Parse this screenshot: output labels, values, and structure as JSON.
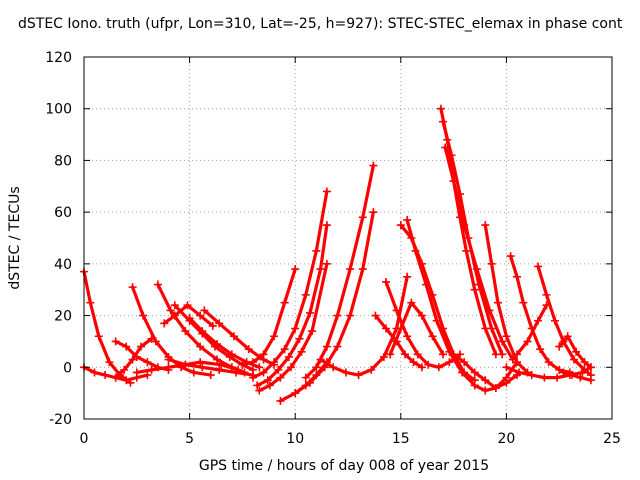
{
  "chart_data": {
    "type": "scatter",
    "title": "dSTEC Iono. truth (ufpr, Lon=310, Lat=-25, h=927): STEC-STEC_elemax in phase cont",
    "xlabel": "GPS time / hours of day 008 of year 2015",
    "ylabel": "dSTEC  / TECUs",
    "xlim": [
      0,
      25
    ],
    "ylim": [
      -20,
      120
    ],
    "xticks": [
      "0",
      "5",
      "10",
      "15",
      "20",
      "25"
    ],
    "yticks": [
      "-20",
      "0",
      "20",
      "40",
      "60",
      "80",
      "100",
      "120"
    ],
    "grid": true,
    "marker": "+",
    "color": "#ff0000",
    "series": [
      {
        "x": [
          0.0,
          0.3,
          0.7,
          1.2,
          1.7,
          2.2
        ],
        "y": [
          37,
          25,
          12,
          2,
          -3,
          -6
        ]
      },
      {
        "x": [
          0.0,
          0.5,
          1.0,
          1.5,
          2.0,
          2.5,
          3.0
        ],
        "y": [
          0,
          -2,
          -3,
          -4,
          -5,
          -4,
          -3
        ]
      },
      {
        "x": [
          1.5,
          2.0,
          2.5,
          3.0,
          3.5,
          4.0
        ],
        "y": [
          10,
          8,
          4,
          2,
          0,
          -1
        ]
      },
      {
        "x": [
          1.5,
          1.9,
          2.3,
          2.7,
          3.2
        ],
        "y": [
          -4,
          -1,
          3,
          8,
          11
        ]
      },
      {
        "x": [
          2.3,
          2.8,
          3.4,
          4.0,
          4.6,
          5.2,
          6.0
        ],
        "y": [
          31,
          20,
          10,
          4,
          0,
          -2,
          -3
        ]
      },
      {
        "x": [
          2.5,
          3.2,
          4.0,
          4.8,
          5.5,
          6.5,
          7.3
        ],
        "y": [
          -2,
          -1,
          0,
          1,
          2,
          1,
          -1
        ]
      },
      {
        "x": [
          3.5,
          4.1,
          4.8,
          5.5,
          6.3,
          7.0,
          7.6
        ],
        "y": [
          32,
          22,
          14,
          8,
          3,
          0,
          -2
        ]
      },
      {
        "x": [
          4.3,
          5.0,
          5.6,
          6.2,
          6.9,
          7.5,
          8.0
        ],
        "y": [
          24,
          18,
          13,
          8,
          4,
          1,
          -1
        ]
      },
      {
        "x": [
          3.8,
          4.3,
          4.9,
          5.5,
          6.1
        ],
        "y": [
          17,
          20,
          24,
          20,
          16
        ]
      },
      {
        "x": [
          5.0,
          5.6,
          6.3,
          7.0,
          7.7,
          8.3
        ],
        "y": [
          19,
          14,
          9,
          5,
          2,
          0
        ]
      },
      {
        "x": [
          5.7,
          6.4,
          7.1,
          7.8,
          8.5,
          9.0
        ],
        "y": [
          22,
          17,
          12,
          7,
          3,
          1
        ]
      },
      {
        "x": [
          4.0,
          4.8,
          5.6,
          6.4,
          7.2,
          8.0
        ],
        "y": [
          3,
          1,
          0,
          -1,
          -2,
          -3
        ]
      },
      {
        "x": [
          7.5,
          8.0,
          8.5,
          9.0,
          9.5,
          10.0
        ],
        "y": [
          1,
          2,
          5,
          12,
          25,
          38
        ]
      },
      {
        "x": [
          8.0,
          8.5,
          9.0,
          9.5,
          10.0,
          10.5,
          11.0,
          11.5
        ],
        "y": [
          -4,
          -2,
          2,
          7,
          15,
          28,
          45,
          68
        ]
      },
      {
        "x": [
          8.2,
          8.7,
          9.2,
          9.7,
          10.2,
          10.7,
          11.2,
          11.5
        ],
        "y": [
          -7,
          -5,
          -1,
          4,
          11,
          21,
          38,
          55
        ]
      },
      {
        "x": [
          8.3,
          8.8,
          9.3,
          9.8,
          10.3,
          10.8,
          11.5
        ],
        "y": [
          -9,
          -7,
          -4,
          0,
          6,
          14,
          40
        ]
      },
      {
        "x": [
          10.0,
          10.5,
          11.0,
          11.5
        ],
        "y": [
          -10,
          -7,
          -3,
          2
        ]
      },
      {
        "x": [
          9.3,
          10.0,
          10.7,
          11.4,
          12.0,
          12.6,
          13.2,
          13.7
        ],
        "y": [
          -13,
          -10,
          -6,
          0,
          8,
          20,
          38,
          60
        ]
      },
      {
        "x": [
          10.5,
          11.0,
          11.5,
          12.0,
          12.6,
          13.2,
          13.7
        ],
        "y": [
          -4,
          0,
          8,
          20,
          38,
          58,
          78
        ]
      },
      {
        "x": [
          11.2,
          11.8,
          12.4,
          13.0,
          13.6,
          14.2,
          14.8,
          15.3
        ],
        "y": [
          3,
          0,
          -2,
          -3,
          -1,
          4,
          15,
          35
        ]
      },
      {
        "x": [
          13.8,
          14.3,
          14.8,
          15.2,
          15.6,
          16.0
        ],
        "y": [
          20,
          15,
          10,
          5,
          2,
          0
        ]
      },
      {
        "x": [
          14.3,
          14.8,
          15.3,
          15.8,
          16.3,
          16.8,
          17.3,
          17.8
        ],
        "y": [
          33,
          22,
          12,
          5,
          1,
          0,
          2,
          5
        ]
      },
      {
        "x": [
          15.0,
          15.5,
          16.0,
          16.5,
          17.0,
          17.5,
          18.0,
          18.5
        ],
        "y": [
          55,
          50,
          40,
          28,
          15,
          5,
          -2,
          -5
        ]
      },
      {
        "x": [
          15.3,
          15.7,
          16.2,
          16.7,
          17.3,
          17.9,
          18.5
        ],
        "y": [
          57,
          45,
          32,
          18,
          6,
          -2,
          -7
        ]
      },
      {
        "x": [
          14.5,
          15.0,
          15.5,
          16.0,
          16.5,
          17.0
        ],
        "y": [
          5,
          15,
          25,
          20,
          12,
          5
        ]
      },
      {
        "x": [
          16.9,
          17.2,
          17.5,
          17.8,
          18.1,
          18.5,
          19.0,
          19.5
        ],
        "y": [
          100,
          88,
          72,
          58,
          45,
          30,
          15,
          5
        ]
      },
      {
        "x": [
          17.0,
          17.4,
          17.8,
          18.2,
          18.7,
          19.3,
          19.8
        ],
        "y": [
          95,
          82,
          67,
          50,
          32,
          15,
          5
        ]
      },
      {
        "x": [
          17.1,
          17.5,
          18.0,
          18.6,
          19.2,
          19.8,
          20.3
        ],
        "y": [
          85,
          72,
          55,
          38,
          22,
          10,
          3
        ]
      },
      {
        "x": [
          19.0,
          19.3,
          19.6,
          20.0,
          20.5,
          21.0
        ],
        "y": [
          55,
          40,
          25,
          12,
          2,
          -2
        ]
      },
      {
        "x": [
          17.5,
          18.0,
          18.5,
          19.0,
          19.5,
          20.0,
          20.5
        ],
        "y": [
          5,
          2,
          -2,
          -5,
          -8,
          -6,
          -3
        ]
      },
      {
        "x": [
          18.5,
          19.0,
          19.5,
          20.0,
          20.5
        ],
        "y": [
          -7,
          -9,
          -8,
          -4,
          2
        ]
      },
      {
        "x": [
          20.2,
          20.5,
          20.8,
          21.2,
          21.6,
          22.0,
          22.5,
          23.0
        ],
        "y": [
          43,
          35,
          25,
          15,
          7,
          2,
          -1,
          -2
        ]
      },
      {
        "x": [
          21.5,
          21.9,
          22.3,
          22.7,
          23.2,
          23.7,
          24.0
        ],
        "y": [
          39,
          28,
          18,
          10,
          3,
          -1,
          -3
        ]
      },
      {
        "x": [
          20.0,
          20.6,
          21.2,
          21.8,
          22.4,
          23.0,
          23.6,
          24.0
        ],
        "y": [
          0,
          -2,
          -3,
          -4,
          -4,
          -3,
          -2,
          0
        ]
      },
      {
        "x": [
          20.5,
          21.0,
          21.5,
          21.9
        ],
        "y": [
          5,
          10,
          18,
          24
        ]
      },
      {
        "x": [
          22.5,
          22.9,
          23.3,
          23.7,
          24.0
        ],
        "y": [
          8,
          12,
          6,
          2,
          0
        ]
      },
      {
        "x": [
          22.7,
          23.1,
          23.5,
          24.0
        ],
        "y": [
          -2,
          -3,
          -4,
          -5
        ]
      }
    ]
  }
}
